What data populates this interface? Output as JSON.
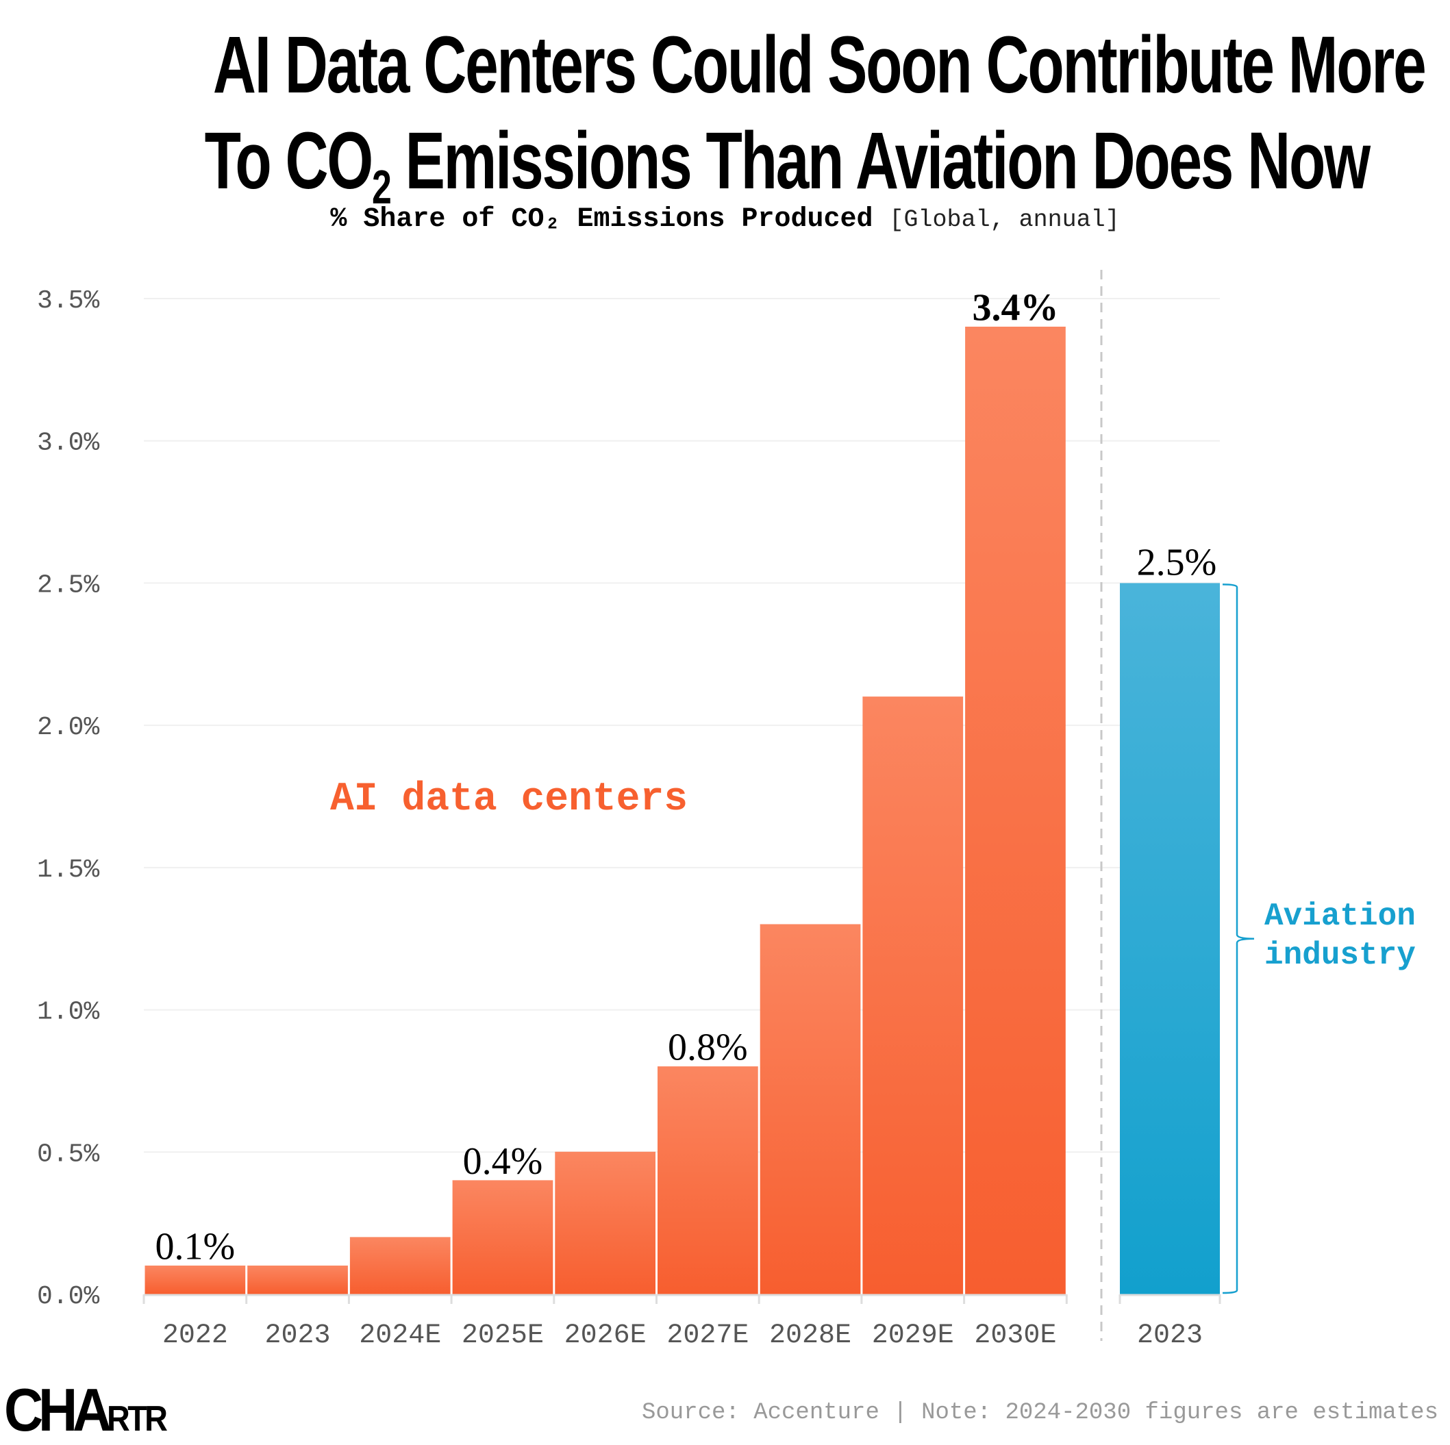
{
  "title": {
    "line1": "AI Data Centers Could Soon Contribute More",
    "line2_pre": "To CO",
    "line2_sub": "2",
    "line2_post": " Emissions Than Aviation Does Now"
  },
  "subtitle": {
    "bold": "% Share of CO₂ Emissions Produced",
    "normal": "[Global, annual]"
  },
  "chart_data": {
    "type": "bar",
    "title": "AI Data Centers Could Soon Contribute More To CO2 Emissions Than Aviation Does Now",
    "ylabel": "% Share of CO₂ Emissions Produced [Global, annual]",
    "ylim": [
      0,
      3.5
    ],
    "yticks": [
      "0.0%",
      "0.5%",
      "1.0%",
      "1.5%",
      "2.0%",
      "2.5%",
      "3.0%",
      "3.5%"
    ],
    "ytick_values": [
      0,
      0.5,
      1.0,
      1.5,
      2.0,
      2.5,
      3.0,
      3.5
    ],
    "grid": true,
    "series": [
      {
        "name": "AI data centers",
        "color_top": "#fb8660",
        "color_bottom": "#f75e2f",
        "label_color": "#f7602f",
        "categories": [
          "2022",
          "2023",
          "2024E",
          "2025E",
          "2026E",
          "2027E",
          "2028E",
          "2029E",
          "2030E"
        ],
        "values": [
          0.1,
          0.1,
          0.2,
          0.4,
          0.5,
          0.8,
          1.3,
          2.1,
          3.4
        ],
        "data_labels": [
          "0.1%",
          "",
          "",
          "0.4%",
          "",
          "0.8%",
          "",
          "",
          "3.4%"
        ]
      },
      {
        "name": "Aviation industry",
        "name_lines": [
          "Aviation",
          "industry"
        ],
        "color_top": "#4ab4da",
        "color_bottom": "#12a0cd",
        "label_color": "#17a0cf",
        "categories": [
          "2023"
        ],
        "values": [
          2.5
        ],
        "data_labels": [
          "2.5%"
        ]
      }
    ]
  },
  "footer": {
    "logo": "CHARTR",
    "source": "Source: Accenture | Note: 2024-2030 figures are estimates"
  }
}
